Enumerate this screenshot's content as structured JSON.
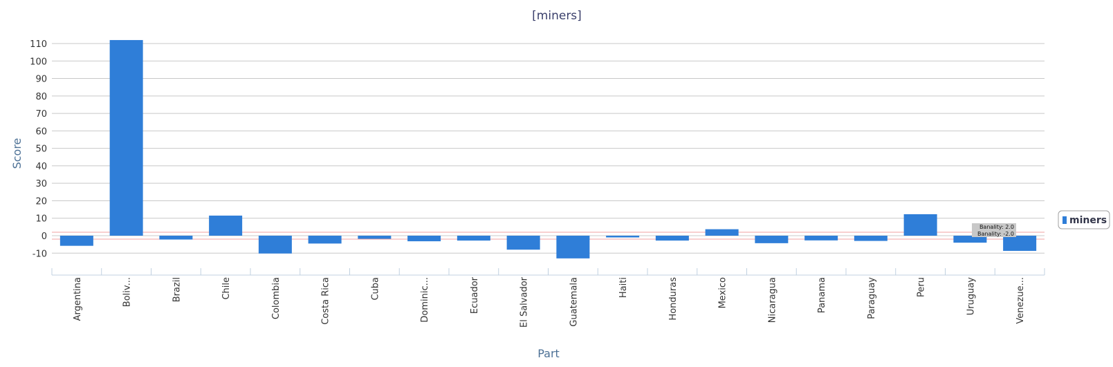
{
  "chart_data": {
    "type": "bar",
    "title": "[miners]",
    "xlabel": "Part",
    "ylabel": "Score",
    "categories": [
      "Argentina",
      "Boliv...",
      "Brazil",
      "Chile",
      "Colombia",
      "Costa Rica",
      "Cuba",
      "Dominic...",
      "Ecuador",
      "El Salvador",
      "Guatemala",
      "Haiti",
      "Honduras",
      "Mexico",
      "Nicaragua",
      "Panama",
      "Paraguay",
      "Peru",
      "Uruguay",
      "Venezue..."
    ],
    "series": [
      {
        "name": "miners",
        "color": "#2f7ed8",
        "values": [
          -5.8,
          112,
          -2.2,
          11.5,
          -10.2,
          -4.5,
          -1.8,
          -3.2,
          -2.8,
          -8.0,
          -13.0,
          -1.0,
          -2.8,
          3.7,
          -4.3,
          -2.7,
          -3.0,
          12.3,
          -4.0,
          -8.7
        ]
      }
    ],
    "ylim": [
      -19,
      115
    ],
    "yticks": [
      -10,
      0,
      10,
      20,
      30,
      40,
      50,
      60,
      70,
      80,
      90,
      100,
      110
    ],
    "grid": true,
    "legend": "right",
    "reference_lines": [
      {
        "label": "Banality: 2.0",
        "value": 2.0,
        "color": "#f2a0a0"
      },
      {
        "label": "Banality: -2.0",
        "value": -2.0,
        "color": "#f2a0a0"
      }
    ]
  }
}
